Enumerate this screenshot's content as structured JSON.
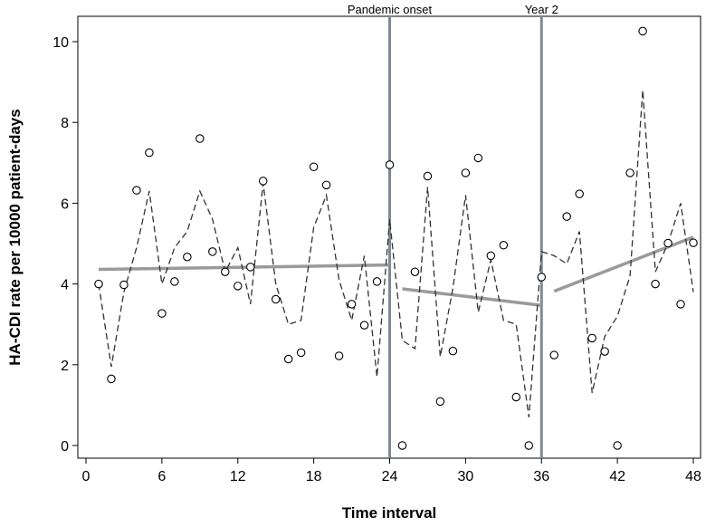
{
  "chart_data": {
    "type": "scatter",
    "title": "",
    "xlabel": "Time interval",
    "ylabel": "HA-CDI rate per 10000 patient-days",
    "xlim": [
      0,
      48
    ],
    "ylim": [
      0,
      10
    ],
    "xticks": [
      0,
      6,
      12,
      18,
      24,
      30,
      36,
      42,
      48
    ],
    "yticks": [
      0,
      2,
      4,
      6,
      8,
      10
    ],
    "grid": false,
    "legend": "none",
    "annotations": [
      {
        "x": 24,
        "label": "Pandemic onset"
      },
      {
        "x": 36,
        "label": "Year 2"
      }
    ],
    "series": [
      {
        "kind": "observed",
        "marker": "open-circle",
        "color": "#000000",
        "x": [
          1,
          2,
          3,
          4,
          5,
          6,
          7,
          8,
          9,
          10,
          11,
          12,
          13,
          14,
          15,
          16,
          17,
          18,
          19,
          20,
          21,
          22,
          23,
          24,
          25,
          26,
          27,
          28,
          29,
          30,
          31,
          32,
          33,
          34,
          35,
          36,
          37,
          38,
          39,
          40,
          41,
          42,
          43,
          44,
          45,
          46,
          47,
          48
        ],
        "y": [
          4.0,
          1.65,
          3.98,
          6.32,
          7.25,
          3.27,
          4.06,
          4.67,
          7.6,
          4.8,
          4.3,
          3.95,
          4.42,
          6.55,
          3.62,
          2.14,
          2.3,
          6.9,
          6.45,
          2.22,
          3.5,
          2.98,
          4.06,
          6.95,
          0.0,
          4.3,
          6.67,
          1.09,
          2.34,
          6.75,
          7.12,
          4.7,
          4.96,
          1.2,
          0.0,
          4.17,
          2.24,
          5.67,
          6.23,
          2.66,
          2.33,
          0.0,
          6.75,
          10.26,
          4.0,
          5.01,
          3.5,
          5.02
        ]
      },
      {
        "kind": "fitted",
        "style": "dashed",
        "color": "#333333",
        "x": [
          1,
          2,
          3,
          4,
          5,
          6,
          7,
          8,
          9,
          10,
          11,
          12,
          13,
          14,
          15,
          16,
          17,
          18,
          19,
          20,
          21,
          22,
          23,
          24,
          25,
          26,
          27,
          28,
          29,
          30,
          31,
          32,
          33,
          34,
          35,
          36,
          37,
          38,
          39,
          40,
          41,
          42,
          43,
          44,
          45,
          46,
          47,
          48
        ],
        "y": [
          4.0,
          1.95,
          3.8,
          4.9,
          6.3,
          4.0,
          4.9,
          5.3,
          6.3,
          5.6,
          4.3,
          4.9,
          3.5,
          6.5,
          4.0,
          3.0,
          3.1,
          5.4,
          6.2,
          4.1,
          3.1,
          4.7,
          1.7,
          5.6,
          2.6,
          2.4,
          6.4,
          2.2,
          3.9,
          6.2,
          3.3,
          4.6,
          3.1,
          3.0,
          0.7,
          4.8,
          4.7,
          4.5,
          5.3,
          1.3,
          2.7,
          3.2,
          4.2,
          8.8,
          4.3,
          5.0,
          6.0,
          3.8
        ]
      },
      {
        "kind": "trend",
        "style": "solid",
        "color": "#9a9a9a",
        "segments": [
          {
            "x": [
              1,
              24
            ],
            "y": [
              4.36,
              4.47
            ]
          },
          {
            "x": [
              25,
              36
            ],
            "y": [
              3.88,
              3.47
            ]
          },
          {
            "x": [
              37,
              48
            ],
            "y": [
              3.82,
              5.16
            ]
          }
        ]
      }
    ]
  }
}
